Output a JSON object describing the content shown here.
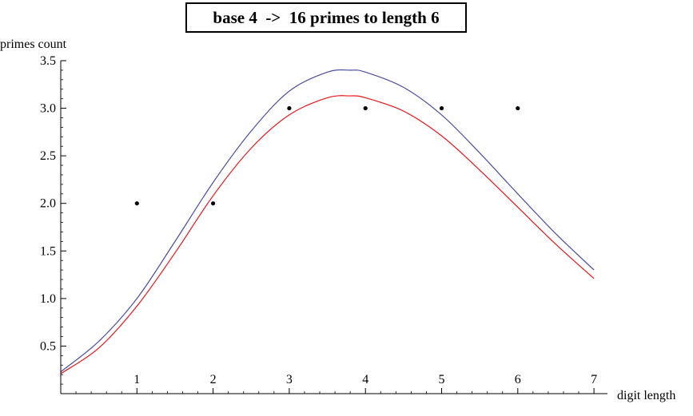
{
  "chart_data": {
    "type": "line",
    "title": "base 4  ->  16 primes to length 6",
    "xlabel": "digit length",
    "ylabel": "primes count",
    "xlim": [
      0,
      7
    ],
    "ylim": [
      0,
      3.5
    ],
    "x_ticks": [
      1,
      2,
      3,
      4,
      5,
      6,
      7
    ],
    "x_tick_labels": [
      "1",
      "2",
      "3",
      "4",
      "5",
      "6",
      "7"
    ],
    "y_ticks": [
      0.5,
      1.0,
      1.5,
      2.0,
      2.5,
      3.0,
      3.5
    ],
    "y_tick_labels": [
      "0.5",
      "1.0",
      "1.5",
      "2.0",
      "2.5",
      "3.0",
      "3.5"
    ],
    "grid": false,
    "legend": "none",
    "series": [
      {
        "style": "line",
        "color": "#4c4ca6",
        "x": [
          0,
          0.5,
          1,
          1.5,
          2,
          2.5,
          3,
          3.5,
          3.8,
          4,
          4.5,
          5,
          5.5,
          6,
          6.5,
          7
        ],
        "y": [
          0.23,
          0.55,
          1.0,
          1.6,
          2.22,
          2.76,
          3.18,
          3.38,
          3.4,
          3.38,
          3.22,
          2.93,
          2.53,
          2.1,
          1.68,
          1.3
        ]
      },
      {
        "style": "line",
        "color": "#e8161a",
        "x": [
          0,
          0.5,
          1,
          1.5,
          2,
          2.5,
          3,
          3.5,
          3.8,
          4,
          4.5,
          5,
          5.5,
          6,
          6.5,
          7
        ],
        "y": [
          0.21,
          0.48,
          0.92,
          1.48,
          2.08,
          2.58,
          2.93,
          3.11,
          3.13,
          3.11,
          2.97,
          2.71,
          2.35,
          1.96,
          1.57,
          1.21
        ]
      },
      {
        "style": "points",
        "color": "#000000",
        "x": [
          1,
          2,
          3,
          4,
          5,
          6
        ],
        "y": [
          2,
          2,
          3,
          3,
          3,
          3
        ]
      }
    ]
  }
}
